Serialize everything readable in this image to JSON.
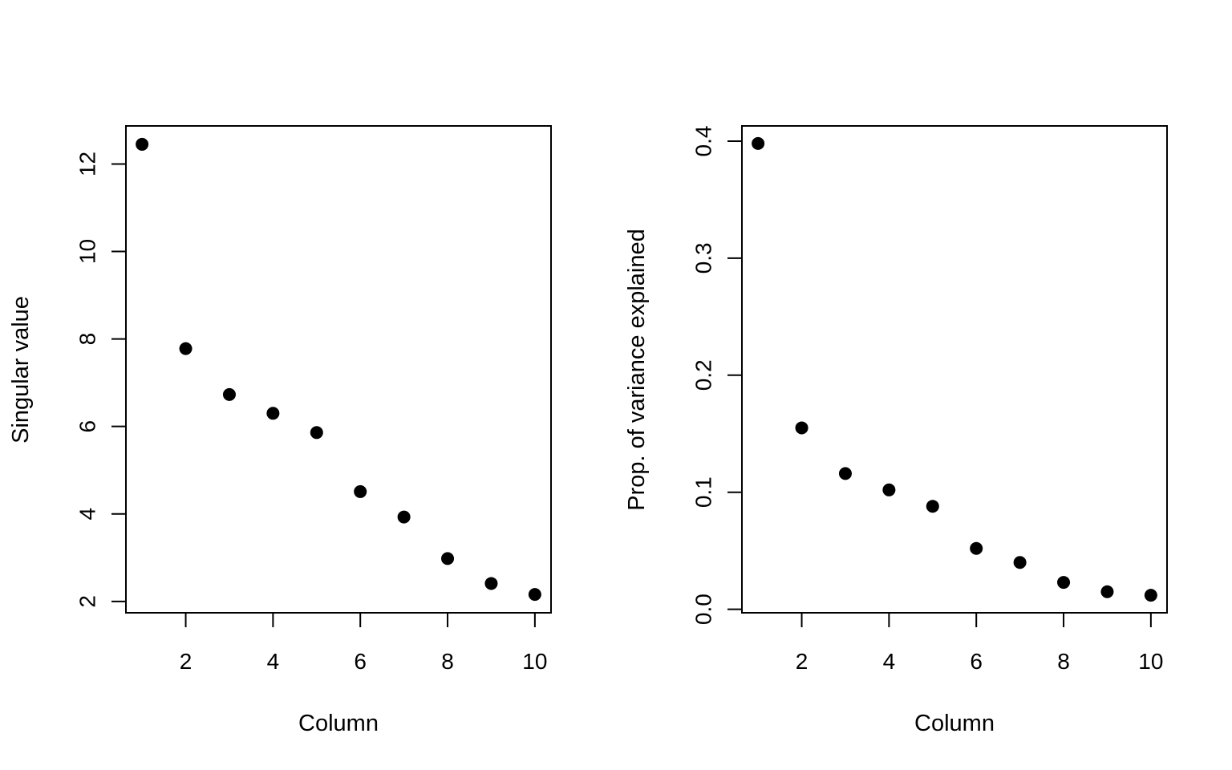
{
  "chart_data": [
    {
      "type": "scatter",
      "title": "",
      "xlabel": "Column",
      "ylabel": "Singular value",
      "x": [
        1,
        2,
        3,
        4,
        5,
        6,
        7,
        8,
        9,
        10
      ],
      "y": [
        12.45,
        7.78,
        6.73,
        6.3,
        5.86,
        4.51,
        3.93,
        2.98,
        2.41,
        2.16
      ],
      "xlim": [
        0.63,
        10.37
      ],
      "ylim": [
        1.74,
        12.87
      ],
      "xticks": [
        2,
        4,
        6,
        8,
        10
      ],
      "xtick_labels": [
        "2",
        "4",
        "6",
        "8",
        "10"
      ],
      "yticks": [
        2,
        4,
        6,
        8,
        10,
        12
      ],
      "ytick_labels": [
        "2",
        "4",
        "6",
        "8",
        "10",
        "12"
      ],
      "grid": false,
      "legend": "none"
    },
    {
      "type": "scatter",
      "title": "",
      "xlabel": "Column",
      "ylabel": "Prop. of variance explained",
      "x": [
        1,
        2,
        3,
        4,
        5,
        6,
        7,
        8,
        9,
        10
      ],
      "y": [
        0.398,
        0.155,
        0.116,
        0.102,
        0.088,
        0.052,
        0.04,
        0.023,
        0.015,
        0.012
      ],
      "xlim": [
        0.63,
        10.37
      ],
      "ylim": [
        -0.003,
        0.413
      ],
      "xticks": [
        2,
        4,
        6,
        8,
        10
      ],
      "xtick_labels": [
        "2",
        "4",
        "6",
        "8",
        "10"
      ],
      "yticks": [
        0.0,
        0.1,
        0.2,
        0.3,
        0.4
      ],
      "ytick_labels": [
        "0.0",
        "0.1",
        "0.2",
        "0.3",
        "0.4"
      ],
      "grid": false,
      "legend": "none"
    }
  ]
}
